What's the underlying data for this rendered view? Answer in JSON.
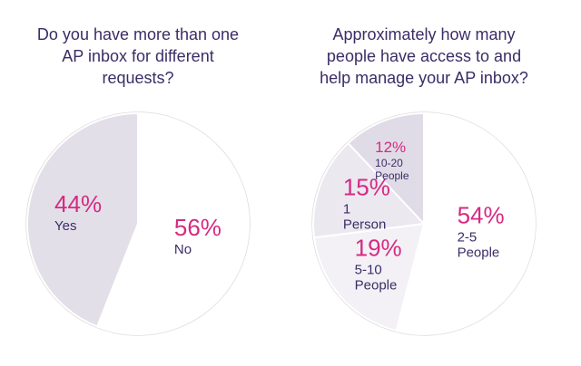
{
  "chart_data": [
    {
      "type": "pie",
      "title": "Do you have more than one AP inbox for different requests?",
      "categories": [
        "No",
        "Yes"
      ],
      "values": [
        56,
        44
      ],
      "value_labels": [
        "56%",
        "44%"
      ],
      "colors": [
        "#ffffff",
        "#e3dfe9"
      ]
    },
    {
      "type": "pie",
      "title": "Approximately how many people have access to and help manage your AP inbox?",
      "categories": [
        "2-5 People",
        "5-10 People",
        "1 Person",
        "10-20 People"
      ],
      "values": [
        54,
        19,
        15,
        12
      ],
      "value_labels": [
        "54%",
        "19%",
        "15%",
        "12%"
      ],
      "colors": [
        "#ffffff",
        "#f3f1f6",
        "#ebe8f0",
        "#e0dce7"
      ]
    }
  ]
}
